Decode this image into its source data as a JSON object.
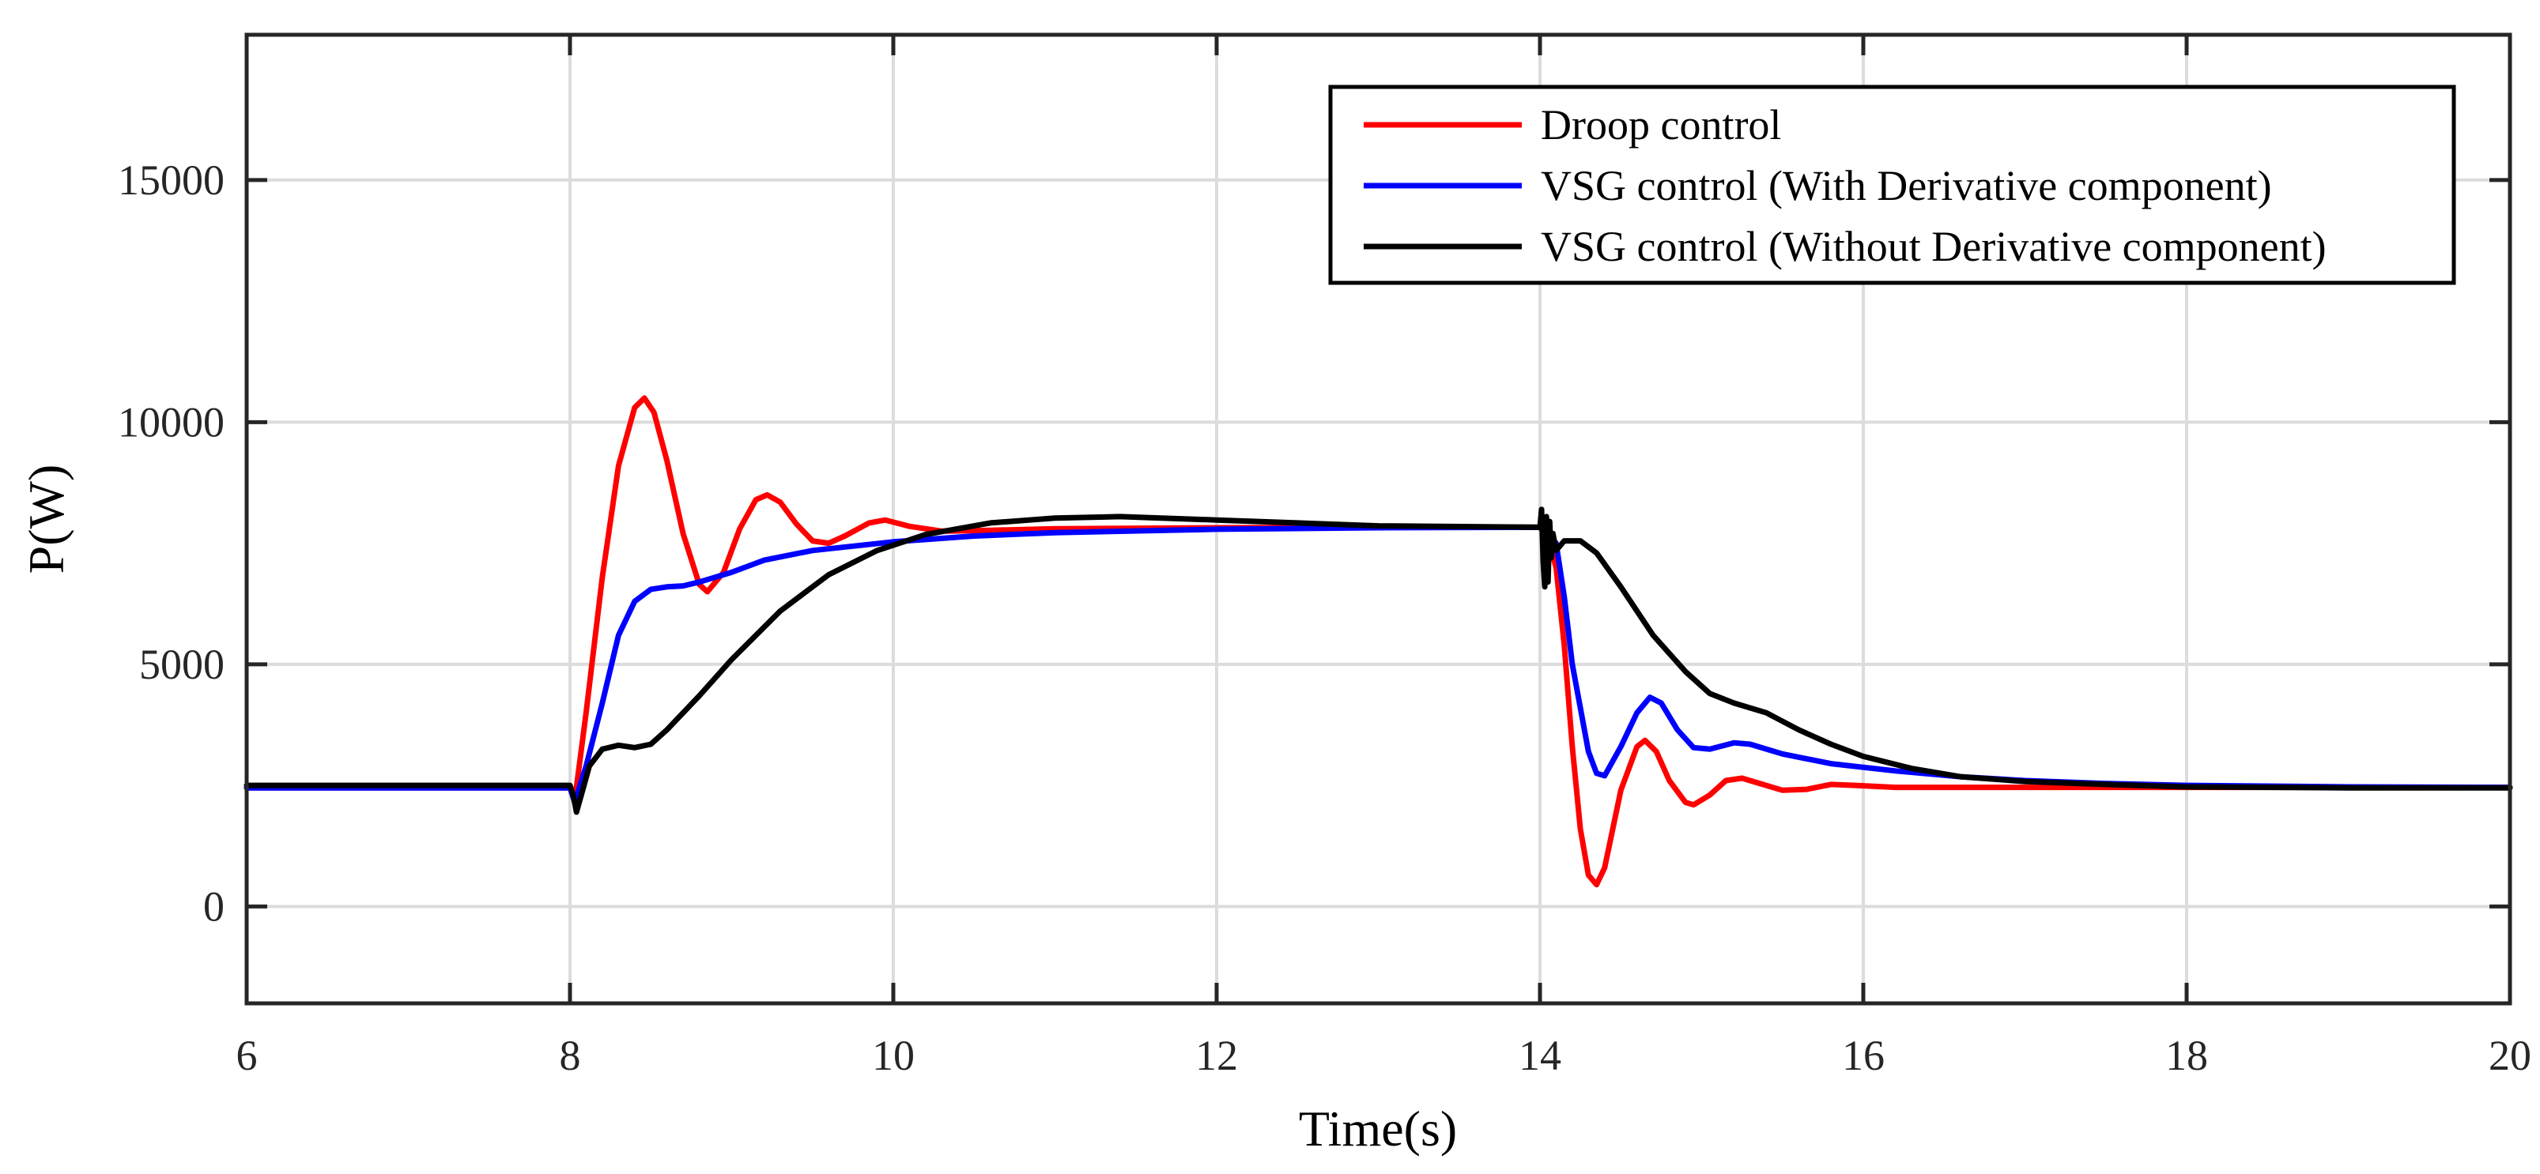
{
  "chart_data": {
    "type": "line",
    "title": "",
    "xlabel": "Time(s)",
    "ylabel": "P(W)",
    "xlim": [
      6,
      20
    ],
    "ylim": [
      -2000,
      18000
    ],
    "xticks": [
      6,
      8,
      10,
      12,
      14,
      16,
      18,
      20
    ],
    "yticks": [
      0,
      5000,
      10000,
      15000
    ],
    "grid": true,
    "legend_position": "top-right",
    "series": [
      {
        "name": "Droop control",
        "color": "#ff0000",
        "points": [
          [
            6,
            2450
          ],
          [
            8.0,
            2450
          ],
          [
            8.03,
            2200
          ],
          [
            8.1,
            4000
          ],
          [
            8.2,
            6800
          ],
          [
            8.3,
            9100
          ],
          [
            8.4,
            10300
          ],
          [
            8.46,
            10500
          ],
          [
            8.52,
            10200
          ],
          [
            8.6,
            9200
          ],
          [
            8.7,
            7700
          ],
          [
            8.8,
            6650
          ],
          [
            8.85,
            6500
          ],
          [
            8.95,
            6900
          ],
          [
            9.05,
            7800
          ],
          [
            9.15,
            8400
          ],
          [
            9.22,
            8500
          ],
          [
            9.3,
            8350
          ],
          [
            9.4,
            7900
          ],
          [
            9.5,
            7550
          ],
          [
            9.6,
            7500
          ],
          [
            9.7,
            7650
          ],
          [
            9.85,
            7920
          ],
          [
            9.95,
            7980
          ],
          [
            10.1,
            7850
          ],
          [
            10.3,
            7750
          ],
          [
            10.5,
            7760
          ],
          [
            11.0,
            7800
          ],
          [
            12.0,
            7820
          ],
          [
            13.0,
            7830
          ],
          [
            14.0,
            7830
          ],
          [
            14.05,
            7600
          ],
          [
            14.1,
            7000
          ],
          [
            14.15,
            5400
          ],
          [
            14.2,
            3300
          ],
          [
            14.25,
            1600
          ],
          [
            14.3,
            650
          ],
          [
            14.35,
            450
          ],
          [
            14.4,
            800
          ],
          [
            14.5,
            2400
          ],
          [
            14.6,
            3300
          ],
          [
            14.65,
            3430
          ],
          [
            14.72,
            3200
          ],
          [
            14.8,
            2600
          ],
          [
            14.9,
            2150
          ],
          [
            14.95,
            2100
          ],
          [
            15.05,
            2300
          ],
          [
            15.15,
            2600
          ],
          [
            15.25,
            2650
          ],
          [
            15.35,
            2550
          ],
          [
            15.5,
            2400
          ],
          [
            15.65,
            2420
          ],
          [
            15.8,
            2520
          ],
          [
            15.95,
            2500
          ],
          [
            16.2,
            2460
          ],
          [
            17.0,
            2460
          ],
          [
            18.0,
            2460
          ],
          [
            19.0,
            2460
          ],
          [
            20.0,
            2460
          ]
        ]
      },
      {
        "name": "VSG control (With Derivative component)",
        "color": "#0000ff",
        "points": [
          [
            6,
            2450
          ],
          [
            8.0,
            2450
          ],
          [
            8.03,
            2150
          ],
          [
            8.1,
            2900
          ],
          [
            8.2,
            4200
          ],
          [
            8.3,
            5600
          ],
          [
            8.4,
            6300
          ],
          [
            8.5,
            6550
          ],
          [
            8.6,
            6600
          ],
          [
            8.7,
            6620
          ],
          [
            8.8,
            6700
          ],
          [
            9.0,
            6900
          ],
          [
            9.2,
            7150
          ],
          [
            9.5,
            7350
          ],
          [
            10.0,
            7530
          ],
          [
            10.5,
            7650
          ],
          [
            11.0,
            7720
          ],
          [
            12.0,
            7790
          ],
          [
            13.0,
            7820
          ],
          [
            14.0,
            7830
          ],
          [
            14.05,
            7700
          ],
          [
            14.1,
            7500
          ],
          [
            14.15,
            6400
          ],
          [
            14.2,
            5000
          ],
          [
            14.3,
            3200
          ],
          [
            14.35,
            2750
          ],
          [
            14.4,
            2700
          ],
          [
            14.5,
            3300
          ],
          [
            14.6,
            4000
          ],
          [
            14.68,
            4320
          ],
          [
            14.75,
            4200
          ],
          [
            14.85,
            3650
          ],
          [
            14.95,
            3280
          ],
          [
            15.05,
            3250
          ],
          [
            15.2,
            3380
          ],
          [
            15.3,
            3350
          ],
          [
            15.5,
            3150
          ],
          [
            15.8,
            2950
          ],
          [
            16.2,
            2800
          ],
          [
            16.6,
            2680
          ],
          [
            17.0,
            2600
          ],
          [
            17.5,
            2540
          ],
          [
            18.0,
            2500
          ],
          [
            19.0,
            2470
          ],
          [
            20.0,
            2460
          ]
        ]
      },
      {
        "name": "VSG control (Without Derivative component)",
        "color": "#000000",
        "points": [
          [
            6,
            2500
          ],
          [
            8.0,
            2500
          ],
          [
            8.02,
            2300
          ],
          [
            8.04,
            1950
          ],
          [
            8.07,
            2300
          ],
          [
            8.12,
            2900
          ],
          [
            8.2,
            3250
          ],
          [
            8.3,
            3330
          ],
          [
            8.4,
            3280
          ],
          [
            8.5,
            3350
          ],
          [
            8.6,
            3650
          ],
          [
            8.8,
            4350
          ],
          [
            9.0,
            5100
          ],
          [
            9.3,
            6100
          ],
          [
            9.6,
            6850
          ],
          [
            9.9,
            7350
          ],
          [
            10.2,
            7680
          ],
          [
            10.6,
            7920
          ],
          [
            11.0,
            8020
          ],
          [
            11.4,
            8050
          ],
          [
            12.0,
            7980
          ],
          [
            12.5,
            7920
          ],
          [
            13.0,
            7860
          ],
          [
            14.0,
            7830
          ],
          [
            14.01,
            8200
          ],
          [
            14.02,
            7100
          ],
          [
            14.03,
            6600
          ],
          [
            14.04,
            8050
          ],
          [
            14.05,
            6700
          ],
          [
            14.06,
            7950
          ],
          [
            14.07,
            7200
          ],
          [
            14.08,
            7700
          ],
          [
            14.1,
            7350
          ],
          [
            14.15,
            7550
          ],
          [
            14.25,
            7550
          ],
          [
            14.35,
            7300
          ],
          [
            14.5,
            6600
          ],
          [
            14.7,
            5600
          ],
          [
            14.9,
            4850
          ],
          [
            15.05,
            4400
          ],
          [
            15.2,
            4200
          ],
          [
            15.4,
            4000
          ],
          [
            15.6,
            3650
          ],
          [
            15.8,
            3350
          ],
          [
            16.0,
            3100
          ],
          [
            16.3,
            2850
          ],
          [
            16.6,
            2680
          ],
          [
            17.0,
            2580
          ],
          [
            17.5,
            2520
          ],
          [
            18.0,
            2470
          ],
          [
            19.0,
            2450
          ],
          [
            20.0,
            2450
          ]
        ]
      }
    ]
  }
}
